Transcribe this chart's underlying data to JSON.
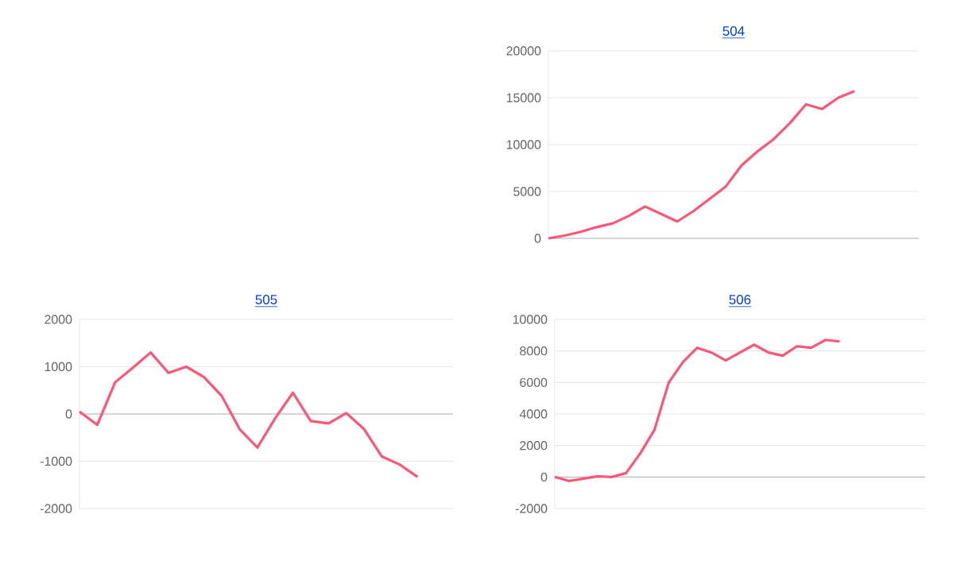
{
  "chart_data": [
    {
      "type": "line",
      "title": "504",
      "categories": [
        null,
        null,
        null,
        null,
        null,
        null,
        null,
        null,
        null,
        null,
        null,
        null,
        null,
        null,
        null,
        null,
        null,
        null,
        null,
        null,
        null,
        null,
        null,
        null
      ],
      "values": [
        0,
        300,
        700,
        1200,
        1600,
        2400,
        3400,
        2600,
        1800,
        2900,
        4200,
        5500,
        7800,
        9300,
        10600,
        12300,
        14300,
        13800,
        15000,
        15700,
        null,
        null,
        null,
        null
      ],
      "color": "#ff5577",
      "ylim": [
        0,
        20000
      ],
      "yticks": [
        0,
        5000,
        10000,
        15000,
        20000
      ],
      "grid": "y",
      "marker": "none",
      "line_style": "solid",
      "tick_labels": "y"
    },
    {
      "type": "line",
      "title": "505",
      "categories": [
        null,
        null,
        null,
        null,
        null,
        null,
        null,
        null,
        null,
        null,
        null,
        null,
        null,
        null,
        null,
        null,
        null,
        null,
        null,
        null,
        null,
        null
      ],
      "values": [
        50,
        -230,
        670,
        980,
        1300,
        870,
        1000,
        780,
        380,
        -320,
        -710,
        -90,
        450,
        -150,
        -200,
        20,
        -320,
        -900,
        -1070,
        -1330,
        null,
        null
      ],
      "color": "#ff5577",
      "ylim": [
        -2000,
        2000
      ],
      "yticks": [
        -2000,
        -1000,
        0,
        1000,
        2000
      ],
      "grid": "y",
      "marker": "none",
      "line_style": "solid",
      "tick_labels": "y"
    },
    {
      "type": "line",
      "title": "506",
      "categories": [
        null,
        null,
        null,
        null,
        null,
        null,
        null,
        null,
        null,
        null,
        null,
        null,
        null,
        null,
        null,
        null,
        null,
        null,
        null,
        null,
        null,
        null,
        null,
        null,
        null,
        null,
        null
      ],
      "values": [
        0,
        -250,
        -100,
        50,
        0,
        250,
        1500,
        3000,
        6000,
        7300,
        8200,
        7900,
        7400,
        7900,
        8400,
        7900,
        7700,
        8300,
        8200,
        8700,
        8600,
        null,
        null,
        null,
        null,
        null,
        null
      ],
      "color": "#ff5577",
      "ylim": [
        -2000,
        10000
      ],
      "yticks": [
        -2000,
        0,
        2000,
        4000,
        6000,
        8000,
        10000
      ],
      "grid": "y",
      "marker": "none",
      "line_style": "solid",
      "tick_labels": "y"
    }
  ]
}
